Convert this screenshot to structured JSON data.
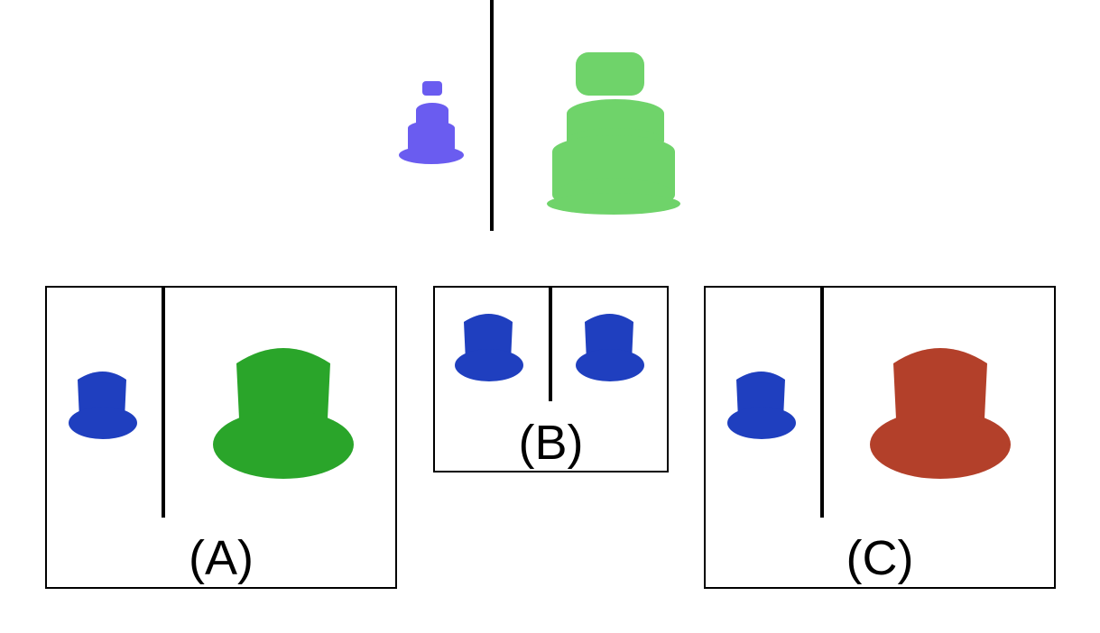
{
  "colors": {
    "reference_small_cake": "#6a5cf0",
    "reference_large_cake": "#6fd36a",
    "hat_small": "#1f3fbf",
    "hat_option_a": "#2aa52a",
    "hat_option_b": "#1f3fbf",
    "hat_option_c": "#b3402a"
  },
  "reference": {
    "left_object_icon": "cake-icon",
    "right_object_icon": "cake-icon"
  },
  "options": [
    {
      "label": "(A)",
      "left_icon": "top-hat-icon",
      "right_icon": "top-hat-icon"
    },
    {
      "label": "(B)",
      "left_icon": "top-hat-icon",
      "right_icon": "top-hat-icon"
    },
    {
      "label": "(C)",
      "left_icon": "top-hat-icon",
      "right_icon": "top-hat-icon"
    }
  ]
}
